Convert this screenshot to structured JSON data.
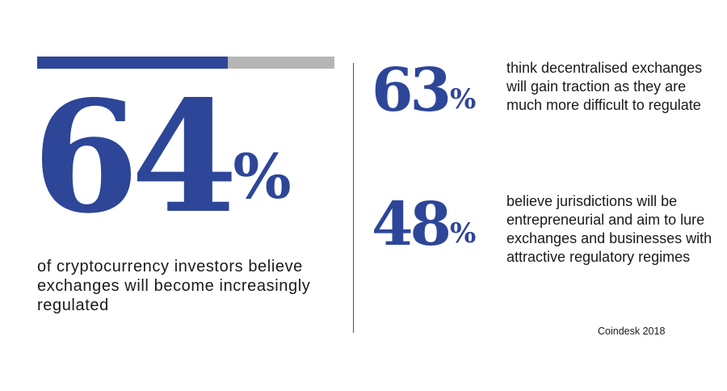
{
  "chart_data": {
    "type": "bar",
    "main": {
      "value": "64",
      "unit": "%",
      "fraction": 0.64,
      "description": "of cryptocurrency investors believe exchanges will become increasingly regulated"
    },
    "stats": [
      {
        "value": "63",
        "unit": "%",
        "description": "think decentralised exchanges will gain traction as they are much more difficult to regulate"
      },
      {
        "value": "48",
        "unit": "%",
        "description": "believe jurisdictions will be entrepreneurial and aim to lure exchanges and businesses with attractive regulatory regimes"
      }
    ],
    "source": "Coindesk 2018",
    "colors": {
      "accent": "#2d4698",
      "track": "#b5b5b5",
      "text": "#1a1a1a"
    }
  }
}
